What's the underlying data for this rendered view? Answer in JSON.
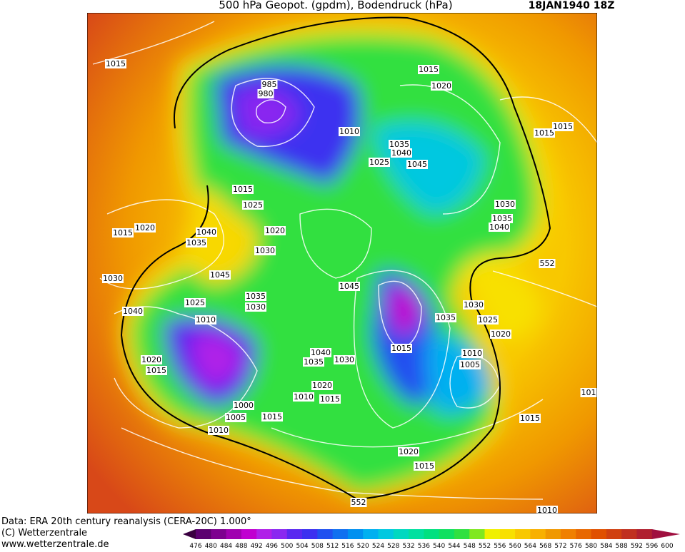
{
  "header": {
    "title": "500 hPa Geopot. (gpdm), Bodendruck (hPa)",
    "date": "18JAN1940 18Z"
  },
  "footer": {
    "source": "Data: ERA 20th century reanalysis (CERA-20C) 1.000°",
    "copyright": "(C) Wetterzentrale",
    "url": "www.wetterzentrale.de"
  },
  "colorbar": {
    "labels": [
      476,
      480,
      484,
      488,
      492,
      496,
      500,
      504,
      508,
      512,
      516,
      520,
      524,
      528,
      532,
      536,
      540,
      544,
      548,
      552,
      556,
      560,
      564,
      568,
      572,
      576,
      580,
      584,
      588,
      592,
      596,
      600
    ],
    "colors": [
      "#3a0040",
      "#5c0070",
      "#7d008f",
      "#a000b0",
      "#c000d0",
      "#b020e8",
      "#8a28f0",
      "#5a28f0",
      "#3c30f0",
      "#2050f0",
      "#1070f0",
      "#0090f0",
      "#00b0f0",
      "#00c8e0",
      "#00d8c0",
      "#00e0a0",
      "#00e080",
      "#10e060",
      "#30e040",
      "#80e820",
      "#f0f000",
      "#f8e000",
      "#f8c800",
      "#f8b000",
      "#f09800",
      "#f08000",
      "#e86800",
      "#e05000",
      "#d04010",
      "#c03020",
      "#b02030",
      "#a01040"
    ]
  },
  "isobar_labels": [
    "1015",
    "985",
    "980",
    "1015",
    "1020",
    "1010",
    "1035",
    "1040",
    "1025",
    "1045",
    "1015",
    "1015",
    "1015",
    "1025",
    "1030",
    "1035",
    "1040",
    "1015",
    "1020",
    "1040",
    "1035",
    "1020",
    "1030",
    "1045",
    "1030",
    "552",
    "1045",
    "1035",
    "1030",
    "1030",
    "1035",
    "1025",
    "1040",
    "1025",
    "1010",
    "1020",
    "1015",
    "1040",
    "1035",
    "1030",
    "1010",
    "1005",
    "1020",
    "1015",
    "1020",
    "1015",
    "1010",
    "1000",
    "1005",
    "1015",
    "1010",
    "1015",
    "1020",
    "1015",
    "552",
    "101",
    "1010"
  ]
}
